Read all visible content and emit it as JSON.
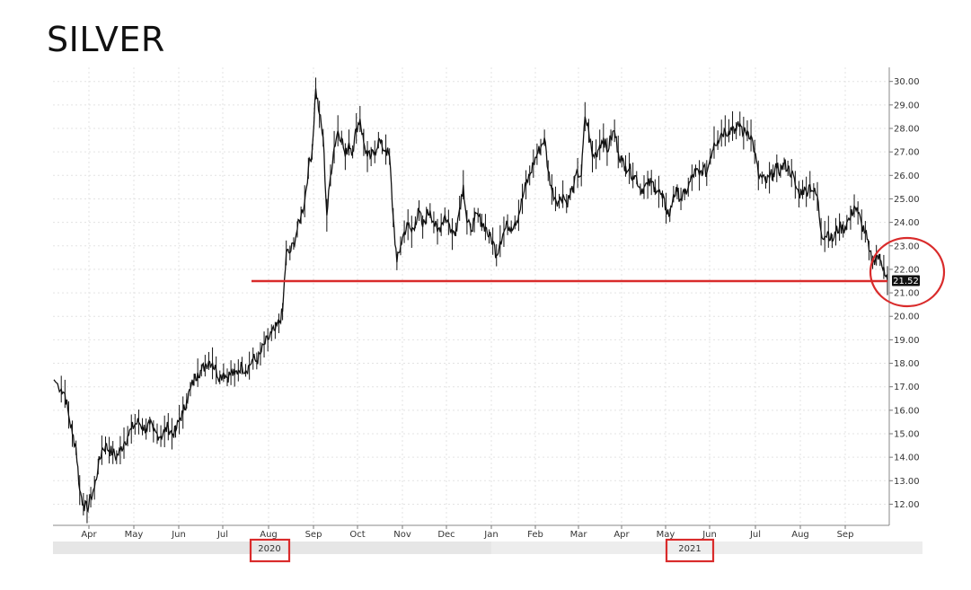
{
  "title": "SILVER",
  "chart_data": {
    "type": "line",
    "title": "SILVER",
    "xlabel": "",
    "ylabel": "",
    "ylim": [
      11.1,
      30.6
    ],
    "yticks": [
      "12.00",
      "13.00",
      "14.00",
      "15.00",
      "16.00",
      "17.00",
      "18.00",
      "19.00",
      "20.00",
      "21.00",
      "22.00",
      "23.00",
      "24.00",
      "25.00",
      "26.00",
      "27.00",
      "28.00",
      "29.00",
      "30.00"
    ],
    "x_month_labels": [
      "Apr",
      "May",
      "Jun",
      "Jul",
      "Aug",
      "Sep",
      "Oct",
      "Nov",
      "Dec",
      "Jan",
      "Feb",
      "Mar",
      "Apr",
      "May",
      "Jun",
      "Jul",
      "Aug",
      "Sep"
    ],
    "year_labels": [
      "2020",
      "2021"
    ],
    "grid": true,
    "last_price": "21.52",
    "support_level": 21.5,
    "colors": {
      "price": "#111111",
      "annotation": "#d92b2b",
      "tag_bg": "#111111",
      "grid": "#e3e3e3",
      "year_band": "#e6e6e6"
    },
    "series": [
      {
        "values": [
          [
            0,
            17.3
          ],
          [
            2,
            16.9
          ],
          [
            3,
            16.7
          ],
          [
            4,
            15.8
          ],
          [
            5,
            15.0
          ],
          [
            6,
            14.4
          ],
          [
            7,
            12.6
          ],
          [
            8,
            12.0
          ],
          [
            9,
            11.8
          ],
          [
            10,
            12.3
          ],
          [
            11,
            12.7
          ],
          [
            12,
            13.6
          ],
          [
            13,
            14.3
          ],
          [
            14,
            14.5
          ],
          [
            15,
            14.3
          ],
          [
            16,
            14.2
          ],
          [
            17,
            14.0
          ],
          [
            18,
            14.3
          ],
          [
            19,
            14.6
          ],
          [
            20,
            14.9
          ],
          [
            21,
            15.2
          ],
          [
            22,
            15.4
          ],
          [
            23,
            15.5
          ],
          [
            24,
            15.3
          ],
          [
            25,
            15.2
          ],
          [
            26,
            15.4
          ],
          [
            27,
            15.1
          ],
          [
            28,
            15.0
          ],
          [
            29,
            14.9
          ],
          [
            30,
            15.1
          ],
          [
            31,
            15.3
          ],
          [
            32,
            15.0
          ],
          [
            33,
            15.1
          ],
          [
            34,
            15.6
          ],
          [
            35,
            15.9
          ],
          [
            36,
            16.4
          ],
          [
            37,
            16.9
          ],
          [
            38,
            17.3
          ],
          [
            39,
            17.6
          ],
          [
            40,
            17.7
          ],
          [
            41,
            17.9
          ],
          [
            42,
            18.1
          ],
          [
            43,
            18.0
          ],
          [
            44,
            17.7
          ],
          [
            45,
            17.4
          ],
          [
            46,
            17.6
          ],
          [
            47,
            17.4
          ],
          [
            48,
            17.6
          ],
          [
            49,
            17.5
          ],
          [
            50,
            17.7
          ],
          [
            51,
            17.9
          ],
          [
            52,
            17.7
          ],
          [
            53,
            17.9
          ],
          [
            54,
            18.2
          ],
          [
            55,
            18.1
          ],
          [
            56,
            18.4
          ],
          [
            57,
            18.8
          ],
          [
            58,
            19.0
          ],
          [
            59,
            19.3
          ],
          [
            60,
            19.4
          ],
          [
            61,
            19.7
          ],
          [
            62,
            20.2
          ],
          [
            63,
            22.7
          ],
          [
            64,
            22.7
          ],
          [
            65,
            23.1
          ],
          [
            66,
            23.7
          ],
          [
            67,
            24.3
          ],
          [
            68,
            24.9
          ],
          [
            69,
            26.3
          ],
          [
            70,
            27.0
          ],
          [
            71,
            29.7
          ],
          [
            72,
            28.6
          ],
          [
            73,
            27.6
          ],
          [
            74,
            24.3
          ],
          [
            75,
            26.0
          ],
          [
            76,
            27.2
          ],
          [
            77,
            27.9
          ],
          [
            78,
            27.6
          ],
          [
            79,
            26.8
          ],
          [
            80,
            27.4
          ],
          [
            81,
            27.0
          ],
          [
            82,
            28.0
          ],
          [
            83,
            28.4
          ],
          [
            84,
            27.4
          ],
          [
            85,
            26.8
          ],
          [
            86,
            26.8
          ],
          [
            87,
            27.0
          ],
          [
            88,
            27.5
          ],
          [
            89,
            27.2
          ],
          [
            90,
            27.1
          ],
          [
            91,
            26.8
          ],
          [
            92,
            24.2
          ],
          [
            93,
            22.3
          ],
          [
            94,
            23.0
          ],
          [
            95,
            23.6
          ],
          [
            96,
            23.9
          ],
          [
            97,
            23.6
          ],
          [
            98,
            24.0
          ],
          [
            99,
            24.5
          ],
          [
            100,
            23.8
          ],
          [
            101,
            24.3
          ],
          [
            102,
            24.5
          ],
          [
            103,
            24.0
          ],
          [
            104,
            23.6
          ],
          [
            105,
            23.9
          ],
          [
            106,
            24.3
          ],
          [
            107,
            24.0
          ],
          [
            108,
            23.5
          ],
          [
            109,
            23.7
          ],
          [
            110,
            24.6
          ],
          [
            111,
            25.6
          ],
          [
            112,
            24.0
          ],
          [
            113,
            23.7
          ],
          [
            114,
            24.1
          ],
          [
            115,
            24.3
          ],
          [
            116,
            24.0
          ],
          [
            117,
            23.8
          ],
          [
            118,
            23.4
          ],
          [
            119,
            23.2
          ],
          [
            120,
            22.6
          ],
          [
            121,
            23.2
          ],
          [
            122,
            23.6
          ],
          [
            123,
            23.9
          ],
          [
            124,
            23.8
          ],
          [
            125,
            24.0
          ],
          [
            126,
            24.3
          ],
          [
            127,
            25.0
          ],
          [
            128,
            25.6
          ],
          [
            129,
            26.0
          ],
          [
            130,
            26.5
          ],
          [
            131,
            26.9
          ],
          [
            132,
            27.2
          ],
          [
            133,
            27.6
          ],
          [
            134,
            26.2
          ],
          [
            135,
            25.4
          ],
          [
            136,
            25.0
          ],
          [
            137,
            24.9
          ],
          [
            138,
            25.2
          ],
          [
            139,
            24.8
          ],
          [
            140,
            25.2
          ],
          [
            141,
            25.6
          ],
          [
            142,
            26.1
          ],
          [
            143,
            26.0
          ],
          [
            144,
            28.5
          ],
          [
            145,
            27.9
          ],
          [
            146,
            26.8
          ],
          [
            147,
            26.9
          ],
          [
            148,
            27.3
          ],
          [
            149,
            27.6
          ],
          [
            150,
            27.0
          ],
          [
            151,
            27.6
          ],
          [
            152,
            27.9
          ],
          [
            153,
            27.0
          ],
          [
            154,
            26.6
          ],
          [
            155,
            26.4
          ],
          [
            156,
            26.3
          ],
          [
            157,
            26.0
          ],
          [
            158,
            25.9
          ],
          [
            159,
            25.4
          ],
          [
            160,
            25.5
          ],
          [
            161,
            25.6
          ],
          [
            162,
            25.7
          ],
          [
            163,
            25.5
          ],
          [
            164,
            25.3
          ],
          [
            165,
            25.0
          ],
          [
            166,
            24.6
          ],
          [
            167,
            24.3
          ],
          [
            168,
            25.2
          ],
          [
            169,
            25.3
          ],
          [
            170,
            25.0
          ],
          [
            171,
            25.2
          ],
          [
            172,
            25.5
          ],
          [
            173,
            25.9
          ],
          [
            174,
            26.2
          ],
          [
            175,
            26.0
          ],
          [
            176,
            26.3
          ],
          [
            177,
            26.1
          ],
          [
            178,
            26.8
          ],
          [
            179,
            27.4
          ],
          [
            180,
            27.5
          ],
          [
            181,
            27.8
          ],
          [
            182,
            27.9
          ],
          [
            183,
            27.9
          ],
          [
            184,
            28.1
          ],
          [
            185,
            27.9
          ],
          [
            186,
            28.2
          ],
          [
            187,
            27.8
          ],
          [
            188,
            27.9
          ],
          [
            189,
            27.7
          ],
          [
            190,
            27.0
          ],
          [
            191,
            26.0
          ],
          [
            192,
            25.9
          ],
          [
            193,
            25.7
          ],
          [
            194,
            25.9
          ],
          [
            195,
            26.1
          ],
          [
            196,
            26.3
          ],
          [
            197,
            26.2
          ],
          [
            198,
            26.5
          ],
          [
            199,
            26.3
          ],
          [
            200,
            26.1
          ],
          [
            201,
            25.6
          ],
          [
            202,
            25.2
          ],
          [
            203,
            25.4
          ],
          [
            204,
            25.3
          ],
          [
            205,
            25.6
          ],
          [
            206,
            25.3
          ],
          [
            207,
            25.1
          ],
          [
            208,
            23.6
          ],
          [
            209,
            23.4
          ],
          [
            210,
            23.6
          ],
          [
            211,
            23.2
          ],
          [
            212,
            23.6
          ],
          [
            213,
            23.8
          ],
          [
            214,
            23.7
          ],
          [
            215,
            24.0
          ],
          [
            216,
            24.2
          ],
          [
            217,
            24.7
          ],
          [
            218,
            24.4
          ],
          [
            219,
            23.9
          ],
          [
            220,
            23.6
          ],
          [
            221,
            22.8
          ],
          [
            222,
            22.3
          ],
          [
            223,
            22.6
          ],
          [
            224,
            22.4
          ],
          [
            225,
            22.1
          ],
          [
            226,
            21.52
          ]
        ]
      }
    ]
  }
}
